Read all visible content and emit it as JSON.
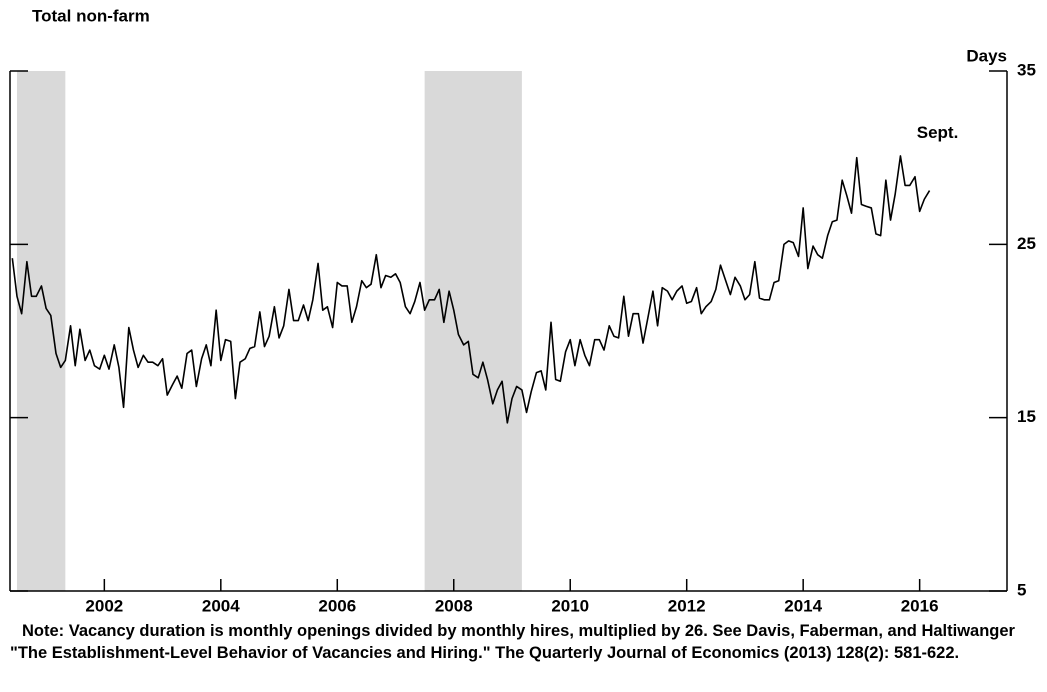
{
  "chart_data": {
    "type": "line",
    "title": "Total non-farm",
    "y_axis_label": "Days",
    "annotation": "Sept.",
    "note": "Note: Vacancy duration is monthly openings divided by monthly hires, multiplied by 26. See Davis, Faberman, and Haltiwanger \"The Establishment-Level Behavior of Vacancies and Hiring.\" The Quarterly Journal of Economics (2013) 128(2): 581-622.",
    "x": [
      2000.92,
      2001.0,
      2001.08,
      2001.17,
      2001.25,
      2001.33,
      2001.42,
      2001.5,
      2001.58,
      2001.67,
      2001.75,
      2001.83,
      2001.92,
      2002.0,
      2002.08,
      2002.17,
      2002.25,
      2002.33,
      2002.42,
      2002.5,
      2002.58,
      2002.67,
      2002.75,
      2002.83,
      2002.92,
      2003.0,
      2003.08,
      2003.17,
      2003.25,
      2003.33,
      2003.42,
      2003.5,
      2003.58,
      2003.67,
      2003.75,
      2003.83,
      2003.92,
      2004.0,
      2004.08,
      2004.17,
      2004.25,
      2004.33,
      2004.42,
      2004.5,
      2004.58,
      2004.67,
      2004.75,
      2004.83,
      2004.92,
      2005.0,
      2005.08,
      2005.17,
      2005.25,
      2005.33,
      2005.42,
      2005.5,
      2005.58,
      2005.67,
      2005.75,
      2005.83,
      2005.92,
      2006.0,
      2006.08,
      2006.17,
      2006.25,
      2006.33,
      2006.42,
      2006.5,
      2006.58,
      2006.67,
      2006.75,
      2006.83,
      2006.92,
      2007.0,
      2007.08,
      2007.17,
      2007.25,
      2007.33,
      2007.42,
      2007.5,
      2007.58,
      2007.67,
      2007.75,
      2007.83,
      2007.92,
      2008.0,
      2008.08,
      2008.17,
      2008.25,
      2008.33,
      2008.42,
      2008.5,
      2008.58,
      2008.67,
      2008.75,
      2008.83,
      2008.92,
      2009.0,
      2009.08,
      2009.17,
      2009.25,
      2009.33,
      2009.42,
      2009.5,
      2009.58,
      2009.67,
      2009.75,
      2009.83,
      2009.92,
      2010.0,
      2010.08,
      2010.17,
      2010.25,
      2010.33,
      2010.42,
      2010.5,
      2010.58,
      2010.67,
      2010.75,
      2010.83,
      2010.92,
      2011.0,
      2011.08,
      2011.17,
      2011.25,
      2011.33,
      2011.42,
      2011.5,
      2011.58,
      2011.67,
      2011.75,
      2011.83,
      2011.92,
      2012.0,
      2012.08,
      2012.17,
      2012.25,
      2012.33,
      2012.42,
      2012.5,
      2012.58,
      2012.67,
      2012.75,
      2012.83,
      2012.92,
      2013.0,
      2013.08,
      2013.17,
      2013.25,
      2013.33,
      2013.42,
      2013.5,
      2013.58,
      2013.67,
      2013.75,
      2013.83,
      2013.92,
      2014.0,
      2014.08,
      2014.17,
      2014.25,
      2014.33,
      2014.42,
      2014.5,
      2014.58,
      2014.67,
      2014.75,
      2014.83,
      2014.92,
      2015.0,
      2015.08,
      2015.17,
      2015.25,
      2015.33,
      2015.42,
      2015.5,
      2015.58,
      2015.67,
      2015.75,
      2015.83,
      2015.92,
      2016.0,
      2016.08,
      2016.17,
      2016.25,
      2016.33,
      2016.42,
      2016.5,
      2016.58,
      2016.67
    ],
    "series": [
      {
        "color": "#000000",
        "values": [
          24.2,
          22.0,
          21.0,
          24.0,
          22.0,
          22.0,
          22.6,
          21.3,
          20.9,
          18.7,
          17.9,
          18.3,
          20.3,
          18.0,
          20.1,
          18.3,
          18.9,
          18.0,
          17.8,
          18.6,
          17.8,
          19.2,
          17.9,
          15.6,
          20.2,
          18.9,
          17.9,
          18.6,
          18.2,
          18.2,
          18.0,
          18.4,
          16.3,
          16.9,
          17.4,
          16.7,
          18.7,
          18.9,
          16.8,
          18.4,
          19.2,
          18.0,
          21.2,
          18.3,
          19.5,
          19.4,
          16.1,
          18.2,
          18.4,
          19.0,
          19.1,
          21.1,
          19.1,
          19.7,
          21.4,
          19.6,
          20.3,
          22.4,
          20.6,
          20.6,
          21.5,
          20.6,
          21.8,
          23.9,
          21.2,
          21.4,
          20.2,
          22.8,
          22.6,
          22.6,
          20.5,
          21.4,
          22.9,
          22.5,
          22.7,
          24.4,
          22.5,
          23.2,
          23.1,
          23.3,
          22.8,
          21.4,
          21.0,
          21.7,
          22.8,
          21.2,
          21.8,
          21.8,
          22.4,
          20.5,
          22.3,
          21.2,
          19.8,
          19.2,
          19.4,
          17.5,
          17.3,
          18.2,
          17.2,
          15.8,
          16.6,
          17.1,
          14.7,
          16.1,
          16.8,
          16.6,
          15.3,
          16.5,
          17.6,
          17.7,
          16.6,
          20.5,
          17.2,
          17.1,
          18.8,
          19.5,
          18.0,
          19.5,
          18.6,
          18.0,
          19.5,
          19.5,
          18.9,
          20.3,
          19.7,
          19.6,
          22.0,
          19.7,
          21.0,
          21.0,
          19.3,
          20.7,
          22.3,
          20.3,
          22.5,
          22.3,
          21.8,
          22.3,
          22.6,
          21.6,
          21.7,
          22.5,
          21.0,
          21.4,
          21.7,
          22.4,
          23.8,
          22.9,
          22.1,
          23.1,
          22.6,
          21.8,
          22.1,
          24.0,
          21.9,
          21.8,
          21.8,
          22.8,
          22.9,
          25.0,
          25.2,
          25.1,
          24.3,
          27.1,
          23.6,
          24.9,
          24.4,
          24.2,
          25.5,
          26.3,
          26.4,
          28.7,
          27.8,
          26.8,
          30.0,
          27.3,
          27.2,
          27.1,
          25.6,
          25.5,
          28.7,
          26.4,
          27.9,
          30.1,
          28.4,
          28.4,
          28.9,
          26.9,
          27.6,
          28.1
        ]
      }
    ],
    "recessions": [
      [
        2001.0,
        2001.83
      ],
      [
        2008.0,
        2009.67
      ]
    ],
    "recession_color": "#d9d9d9",
    "xlim": [
      2000.88,
      2018.0
    ],
    "xticks": [
      {
        "value": 2002.5,
        "label": "2002"
      },
      {
        "value": 2004.5,
        "label": "2004"
      },
      {
        "value": 2006.5,
        "label": "2006"
      },
      {
        "value": 2008.5,
        "label": "2008"
      },
      {
        "value": 2010.5,
        "label": "2010"
      },
      {
        "value": 2012.5,
        "label": "2012"
      },
      {
        "value": 2014.5,
        "label": "2014"
      },
      {
        "value": 2016.5,
        "label": "2016"
      }
    ],
    "ylim": [
      5,
      35
    ],
    "yticks": [
      5,
      15,
      25,
      35
    ],
    "grid": false
  }
}
